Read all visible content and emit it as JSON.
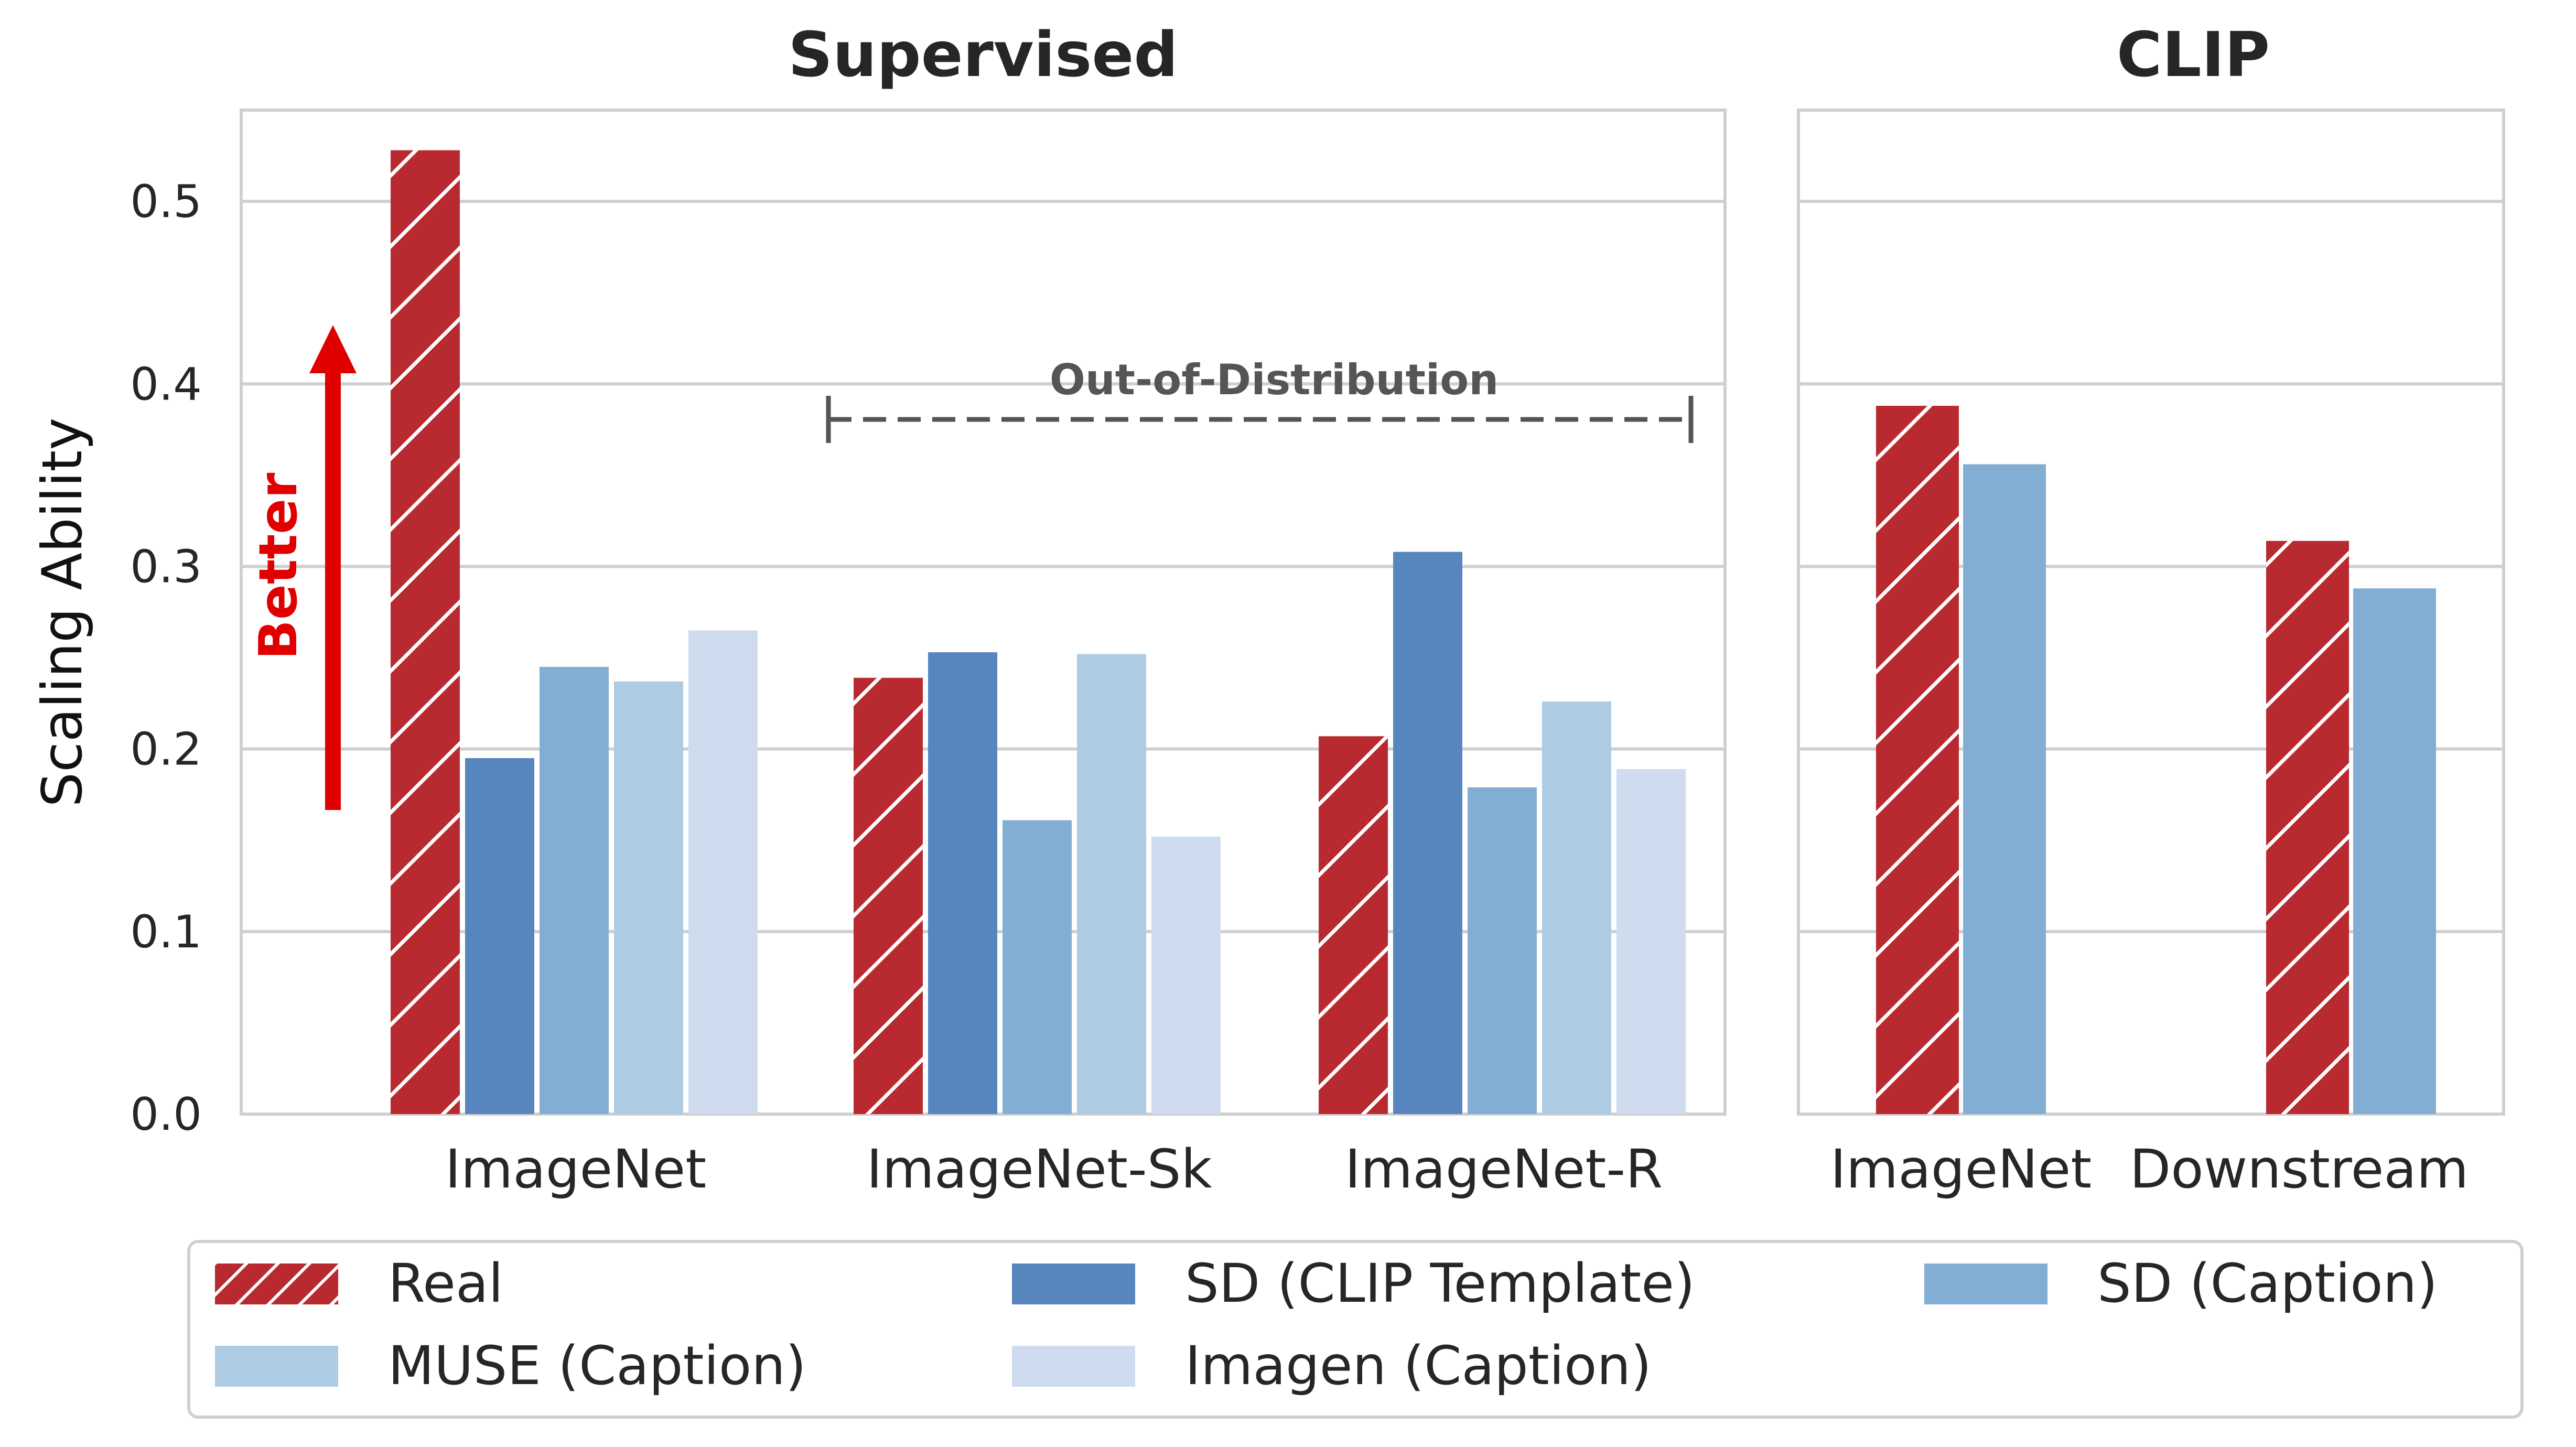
{
  "chart_data": [
    {
      "type": "bar",
      "title": "Supervised",
      "ylabel": "Scaling Ability",
      "ylim": [
        0,
        0.55
      ],
      "yticks": [
        0.0,
        0.1,
        0.2,
        0.3,
        0.4,
        0.5
      ],
      "grid": true,
      "categories": [
        "ImageNet",
        "ImageNet-Sk",
        "ImageNet-R"
      ],
      "series": [
        {
          "name": "Real",
          "values": [
            0.528,
            0.239,
            0.207
          ]
        },
        {
          "name": "SD (CLIP Template)",
          "values": [
            0.195,
            0.253,
            0.308
          ]
        },
        {
          "name": "SD (Caption)",
          "values": [
            0.245,
            0.161,
            0.179
          ]
        },
        {
          "name": "MUSE (Caption)",
          "values": [
            0.237,
            0.252,
            0.226
          ]
        },
        {
          "name": "Imagen (Caption)",
          "values": [
            0.265,
            0.152,
            0.189
          ]
        }
      ],
      "annotations": {
        "better_label": "Better",
        "ood_label": "Out-of-Distribution"
      }
    },
    {
      "type": "bar",
      "title": "CLIP",
      "ylim": [
        0,
        0.55
      ],
      "grid": true,
      "categories": [
        "ImageNet",
        "Downstream"
      ],
      "series": [
        {
          "name": "Real",
          "values": [
            0.388,
            0.314
          ]
        },
        {
          "name": "SD (Caption)",
          "values": [
            0.356,
            0.288
          ]
        }
      ]
    }
  ],
  "legend": {
    "placement": "bottom",
    "entries": [
      {
        "name": "Real",
        "color": "#b82a2f",
        "hatch": true
      },
      {
        "name": "SD (CLIP Template)",
        "color": "#5785bd",
        "hatch": false
      },
      {
        "name": "SD (Caption)",
        "color": "#83aed4",
        "hatch": false
      },
      {
        "name": "MUSE (Caption)",
        "color": "#adcbe2",
        "hatch": false
      },
      {
        "name": "Imagen (Caption)",
        "color": "#cfdcef",
        "hatch": false
      }
    ]
  },
  "colors": {
    "real": "#b82a2f",
    "sd_clip_template": "#5785bd",
    "sd_caption": "#83aed4",
    "muse_caption": "#adcbe2",
    "imagen_caption": "#cfdcef",
    "better_arrow": "#e00000",
    "ood_bracket": "#555555",
    "grid": "#cfcfcf",
    "text": "#262626"
  }
}
